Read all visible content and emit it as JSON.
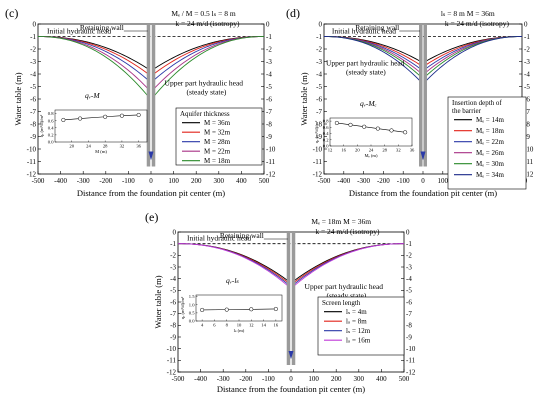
{
  "chart_data": [
    {
      "panel": "(c)",
      "type": "line",
      "xlabel": "Distance from the foundation pit center (m)",
      "ylabel": "Water table (m)",
      "xlim": [
        -500,
        500
      ],
      "ylim": [
        -12,
        0
      ],
      "xticks": [
        "-500",
        "-400",
        "-300",
        "-200",
        "-100",
        "0",
        "100",
        "200",
        "300",
        "400",
        "500"
      ],
      "yticks": [
        "0",
        "-1",
        "-2",
        "-3",
        "-4",
        "-5",
        "-6",
        "-7",
        "-8",
        "-9",
        "-10",
        "-11",
        "-12"
      ],
      "annotations": [
        "Retaining wall",
        "Initial hydraulic head",
        "Upper part hydraulic head",
        "(steady state)"
      ],
      "params": [
        "Mₑ / M = 0.5",
        "lₛ = 8 m",
        "k = 24 m/d (isotropy)"
      ],
      "legend_title": "Aquifer thickness",
      "legend_location": "right",
      "series": [
        {
          "name": "M = 36m",
          "color": "#000000",
          "depth": -3.6
        },
        {
          "name": "M = 32m",
          "color": "#e2231a",
          "depth": -4.0
        },
        {
          "name": "M = 28m",
          "color": "#2b3aa8",
          "depth": -4.5
        },
        {
          "name": "M = 22m",
          "color": "#a83286",
          "depth": -5.2
        },
        {
          "name": "M = 18m",
          "color": "#2a8a2a",
          "depth": -5.8
        }
      ],
      "inset": {
        "title": "qᵥ-M",
        "xlabel": "M (m)",
        "ylabel": "qᵥ (m³/d)/m²",
        "x": [
          18,
          22,
          28,
          32,
          36
        ],
        "y": [
          0.62,
          0.66,
          0.71,
          0.74,
          0.76
        ],
        "xticks": [
          "20",
          "24",
          "28",
          "32",
          "36"
        ],
        "yticks": [
          "0.0",
          "0.2",
          "0.4",
          "0.6",
          "0.8"
        ],
        "ylim": [
          0,
          0.9
        ],
        "xlim": [
          16,
          38
        ]
      }
    },
    {
      "panel": "(d)",
      "type": "line",
      "xlabel": "Distance from the foundation pit center (m)",
      "ylabel": "Water table (m)",
      "xlim": [
        -500,
        500
      ],
      "ylim": [
        -12,
        0
      ],
      "xticks": [
        "-500",
        "-400",
        "-300",
        "-200",
        "-100",
        "0",
        "100",
        "200",
        "300",
        "400",
        "500"
      ],
      "yticks": [
        "0",
        "-1",
        "-2",
        "-3",
        "-4",
        "-5",
        "-6",
        "-7",
        "-8",
        "-9",
        "-10",
        "-11",
        "-12"
      ],
      "annotations": [
        "Retaining wall",
        "Initial hydraulic head",
        "Upper part hydraulic head",
        "(steady state)"
      ],
      "params": [
        "lₛ = 8 m",
        "M = 36m",
        "k = 24 m/d (isotropy)"
      ],
      "legend_title": "Insertion depth of the barrier",
      "legend_location": "right",
      "series": [
        {
          "name": "Mₑ = 14m",
          "color": "#000000",
          "depth": -3.0
        },
        {
          "name": "Mₑ = 18m",
          "color": "#e2231a",
          "depth": -3.3
        },
        {
          "name": "Mₑ = 22m",
          "color": "#2b3aa8",
          "depth": -3.6
        },
        {
          "name": "Mₑ = 26m",
          "color": "#a83286",
          "depth": -3.9
        },
        {
          "name": "Mₑ = 30m",
          "color": "#2a8a2a",
          "depth": -4.2
        },
        {
          "name": "Mₑ = 34m",
          "color": "#1b2a8a",
          "depth": -4.6
        }
      ],
      "inset": {
        "title": "qᵥ-Mₑ",
        "xlabel": "Mₑ (m)",
        "ylabel": "qᵥ (m³/d)/m²",
        "x": [
          14,
          18,
          22,
          26,
          30,
          34
        ],
        "y": [
          0.74,
          0.68,
          0.62,
          0.56,
          0.5,
          0.44
        ],
        "xticks": [
          "12",
          "16",
          "20",
          "24",
          "28",
          "32",
          "36"
        ],
        "yticks": [
          "0.0",
          "0.2",
          "0.4",
          "0.6",
          "0.8"
        ],
        "ylim": [
          0,
          0.9
        ],
        "xlim": [
          12,
          36
        ]
      }
    },
    {
      "panel": "(e)",
      "type": "line",
      "xlabel": "Distance from the foundation pit center (m)",
      "ylabel": "Water table (m)",
      "xlim": [
        -500,
        500
      ],
      "ylim": [
        -12,
        0
      ],
      "xticks": [
        "-500",
        "-400",
        "-300",
        "-200",
        "-100",
        "0",
        "100",
        "200",
        "300",
        "400",
        "500"
      ],
      "yticks": [
        "0",
        "-1",
        "-2",
        "-3",
        "-4",
        "-5",
        "-6",
        "-7",
        "-8",
        "-9",
        "-10",
        "-11",
        "-12"
      ],
      "annotations": [
        "Retaining wall",
        "Initial hydraulic head",
        "Upper part hydraulic head",
        "(steady state)"
      ],
      "params": [
        "Mₑ = 18m",
        "M = 36m",
        "k = 24 m/d (isotropy)"
      ],
      "legend_title": "Screen length",
      "legend_location": "right",
      "series": [
        {
          "name": "lₛ = 4m",
          "color": "#000000",
          "depth": -4.2
        },
        {
          "name": "lₛ = 8m",
          "color": "#e2231a",
          "depth": -4.35
        },
        {
          "name": "lₛ = 12m",
          "color": "#2b3aa8",
          "depth": -4.5
        },
        {
          "name": "lₛ = 16m",
          "color": "#c03ad8",
          "depth": -4.65
        }
      ],
      "inset": {
        "title": "qᵥ-lₛ",
        "xlabel": "lₛ (m)",
        "ylabel": "qᵥ (m³/d)/m²",
        "x": [
          4,
          8,
          12,
          16
        ],
        "y": [
          0.68,
          0.7,
          0.72,
          0.74
        ],
        "xticks": [
          "4",
          "6",
          "8",
          "10",
          "12",
          "14",
          "16"
        ],
        "yticks": [
          "0.0",
          "0.5",
          "1.0",
          "1.5"
        ],
        "ylim": [
          0,
          1.6
        ],
        "xlim": [
          3,
          17
        ]
      }
    }
  ]
}
